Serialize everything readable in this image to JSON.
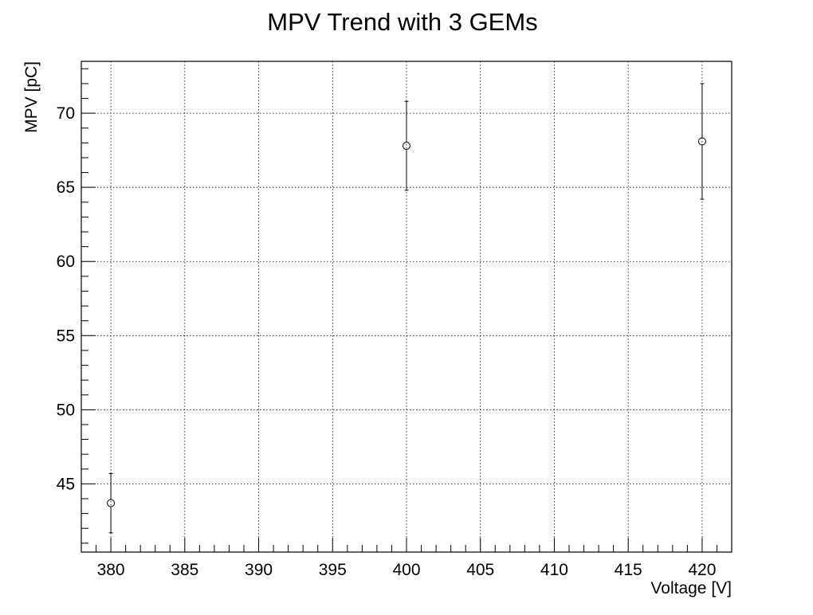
{
  "chart_data": {
    "type": "scatter",
    "title": "MPV Trend with 3 GEMs",
    "xlabel": "Voltage [V]",
    "ylabel": "MPV [pC]",
    "xlim": [
      378,
      422
    ],
    "ylim": [
      40.4,
      73.5
    ],
    "x_ticks": [
      380,
      385,
      390,
      395,
      400,
      405,
      410,
      415,
      420
    ],
    "y_ticks": [
      45,
      50,
      55,
      60,
      65,
      70
    ],
    "grid": true,
    "marker": "open-circle",
    "series": [
      {
        "points": [
          {
            "x": 380,
            "y": 43.7,
            "err": 2.0
          },
          {
            "x": 400,
            "y": 67.8,
            "err": 3.0
          },
          {
            "x": 420,
            "y": 68.1,
            "err": 3.9
          }
        ]
      }
    ]
  }
}
